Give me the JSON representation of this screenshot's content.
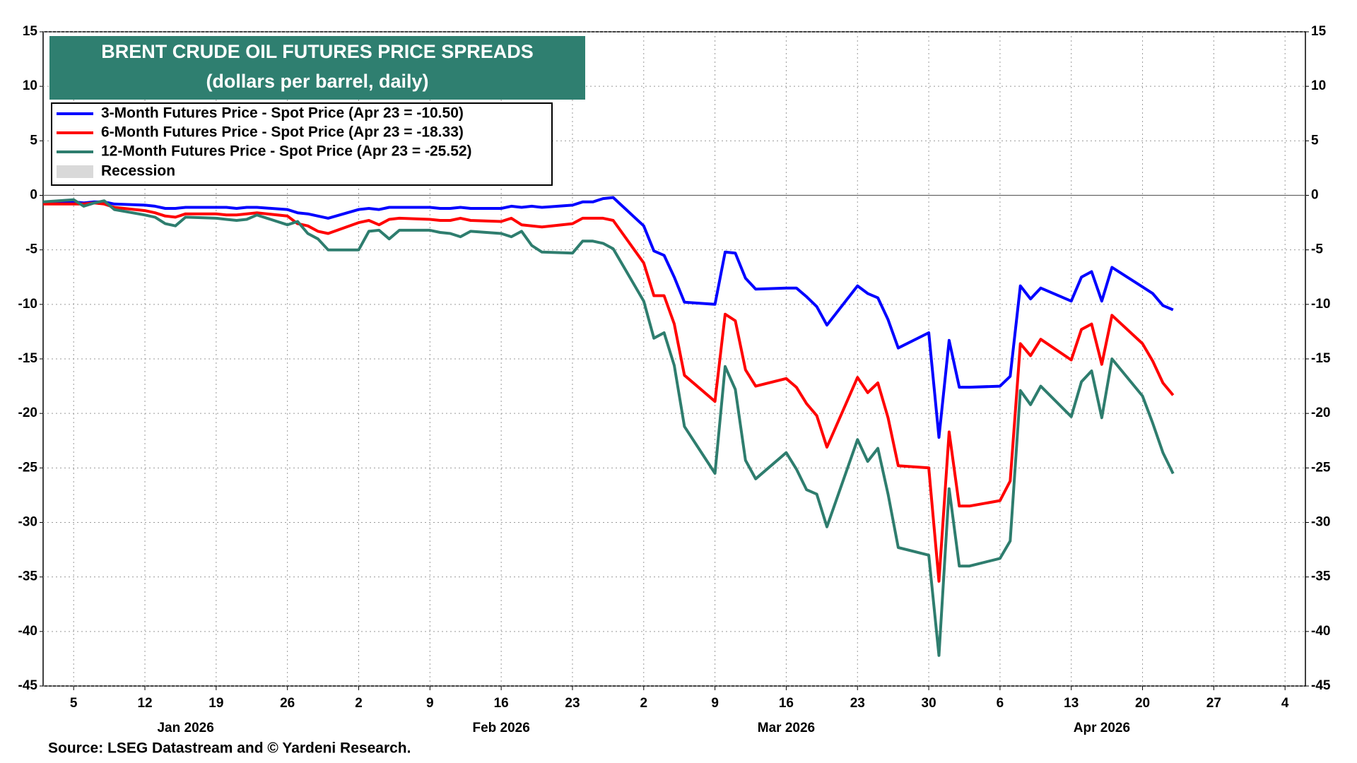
{
  "chart_data": {
    "type": "line",
    "title": "BRENT CRUDE OIL FUTURES PRICE SPREADS",
    "subtitle": "(dollars per barrel, daily)",
    "source": "Source: LSEG Datastream and © Yardeni Research.",
    "recession_label": "Recession",
    "x": [
      "2026-01-02",
      "2026-01-05",
      "2026-01-06",
      "2026-01-07",
      "2026-01-08",
      "2026-01-09",
      "2026-01-12",
      "2026-01-13",
      "2026-01-14",
      "2026-01-15",
      "2026-01-16",
      "2026-01-19",
      "2026-01-20",
      "2026-01-21",
      "2026-01-22",
      "2026-01-23",
      "2026-01-26",
      "2026-01-27",
      "2026-01-28",
      "2026-01-29",
      "2026-01-30",
      "2026-02-02",
      "2026-02-03",
      "2026-02-04",
      "2026-02-05",
      "2026-02-06",
      "2026-02-09",
      "2026-02-10",
      "2026-02-11",
      "2026-02-12",
      "2026-02-13",
      "2026-02-16",
      "2026-02-17",
      "2026-02-18",
      "2026-02-19",
      "2026-02-20",
      "2026-02-23",
      "2026-02-24",
      "2026-02-25",
      "2026-02-26",
      "2026-02-27",
      "2026-03-02",
      "2026-03-03",
      "2026-03-04",
      "2026-03-05",
      "2026-03-06",
      "2026-03-09",
      "2026-03-10",
      "2026-03-11",
      "2026-03-12",
      "2026-03-13",
      "2026-03-16",
      "2026-03-17",
      "2026-03-18",
      "2026-03-19",
      "2026-03-20",
      "2026-03-23",
      "2026-03-24",
      "2026-03-25",
      "2026-03-26",
      "2026-03-27",
      "2026-03-30",
      "2026-03-31",
      "2026-04-01",
      "2026-04-02",
      "2026-04-03",
      "2026-04-06",
      "2026-04-07",
      "2026-04-08",
      "2026-04-09",
      "2026-04-10",
      "2026-04-13",
      "2026-04-14",
      "2026-04-15",
      "2026-04-16",
      "2026-04-17",
      "2026-04-20",
      "2026-04-21",
      "2026-04-22",
      "2026-04-23"
    ],
    "series": [
      {
        "name": "3-Month Futures Price - Spot Price (Apr 23 = -10.50)",
        "color": "#0000ff",
        "values": [
          -0.7,
          -0.6,
          -0.7,
          -0.6,
          -0.6,
          -0.8,
          -0.9,
          -1.0,
          -1.2,
          -1.2,
          -1.1,
          -1.1,
          -1.1,
          -1.2,
          -1.1,
          -1.1,
          -1.3,
          -1.6,
          -1.7,
          -1.9,
          -2.1,
          -1.3,
          -1.2,
          -1.3,
          -1.1,
          -1.1,
          -1.1,
          -1.2,
          -1.2,
          -1.1,
          -1.2,
          -1.2,
          -1.0,
          -1.1,
          -1.0,
          -1.1,
          -0.9,
          -0.6,
          -0.6,
          -0.3,
          -0.2,
          -2.8,
          -5.1,
          -5.5,
          -7.5,
          -9.8,
          -10.0,
          -5.2,
          -5.3,
          -7.6,
          -8.6,
          -8.5,
          -8.5,
          -9.3,
          -10.2,
          -11.9,
          -8.3,
          -9.0,
          -9.4,
          -11.4,
          -14.0,
          -12.6,
          -22.2,
          -13.3,
          -17.6,
          -17.6,
          -17.5,
          -16.6,
          -8.3,
          -9.5,
          -8.5,
          -9.7,
          -7.5,
          -7.0,
          -9.7,
          -6.6,
          -8.4,
          -9.0,
          -10.1,
          -10.5
        ]
      },
      {
        "name": "6-Month Futures Price - Spot Price (Apr 23 = -18.33)",
        "color": "#ff0000",
        "values": [
          -0.8,
          -0.8,
          -0.8,
          -0.7,
          -0.8,
          -1.1,
          -1.4,
          -1.6,
          -1.9,
          -2.0,
          -1.7,
          -1.7,
          -1.8,
          -1.8,
          -1.7,
          -1.6,
          -1.9,
          -2.6,
          -2.8,
          -3.3,
          -3.5,
          -2.5,
          -2.3,
          -2.7,
          -2.2,
          -2.1,
          -2.2,
          -2.3,
          -2.3,
          -2.1,
          -2.3,
          -2.4,
          -2.1,
          -2.7,
          -2.8,
          -2.9,
          -2.6,
          -2.1,
          -2.1,
          -2.1,
          -2.3,
          -6.2,
          -9.2,
          -9.2,
          -11.8,
          -16.5,
          -18.9,
          -10.9,
          -11.5,
          -16.0,
          -17.5,
          -16.8,
          -17.6,
          -19.1,
          -20.2,
          -23.1,
          -16.7,
          -18.1,
          -17.2,
          -20.4,
          -24.8,
          -25.0,
          -35.4,
          -21.7,
          -28.5,
          -28.5,
          -28.0,
          -26.2,
          -13.6,
          -14.7,
          -13.2,
          -15.1,
          -12.3,
          -11.8,
          -15.5,
          -11.0,
          -13.6,
          -15.2,
          -17.2,
          -18.33
        ]
      },
      {
        "name": "12-Month Futures Price - Spot Price (Apr 23 = -25.52)",
        "color": "#2e7d6e",
        "values": [
          -0.6,
          -0.4,
          -1.0,
          -0.7,
          -0.5,
          -1.3,
          -1.8,
          -2.0,
          -2.6,
          -2.8,
          -2.0,
          -2.1,
          -2.2,
          -2.3,
          -2.2,
          -1.8,
          -2.7,
          -2.4,
          -3.5,
          -4.0,
          -5.0,
          -5.0,
          -3.3,
          -3.2,
          -4.0,
          -3.2,
          -3.2,
          -3.4,
          -3.5,
          -3.8,
          -3.3,
          -3.5,
          -3.8,
          -3.3,
          -4.6,
          -5.2,
          -5.3,
          -4.2,
          -4.2,
          -4.4,
          -4.9,
          -9.7,
          -13.1,
          -12.6,
          -15.6,
          -21.2,
          -25.5,
          -15.7,
          -17.8,
          -24.3,
          -26.0,
          -23.6,
          -25.1,
          -27.0,
          -27.4,
          -30.4,
          -22.4,
          -24.4,
          -23.2,
          -27.4,
          -32.3,
          -33.0,
          -42.2,
          -26.9,
          -34.0,
          -34.0,
          -33.3,
          -31.7,
          -17.9,
          -19.2,
          -17.5,
          -20.3,
          -17.1,
          -16.1,
          -20.4,
          -15.0,
          -18.4,
          -20.9,
          -23.6,
          -25.52
        ]
      }
    ],
    "xlim": [
      "2026-01-02",
      "2026-05-06"
    ],
    "xticks": [
      {
        "value": "2026-01-05",
        "label": "5"
      },
      {
        "value": "2026-01-12",
        "label": "12"
      },
      {
        "value": "2026-01-19",
        "label": "19"
      },
      {
        "value": "2026-01-26",
        "label": "26"
      },
      {
        "value": "2026-02-02",
        "label": "2"
      },
      {
        "value": "2026-02-09",
        "label": "9"
      },
      {
        "value": "2026-02-16",
        "label": "16"
      },
      {
        "value": "2026-02-23",
        "label": "23"
      },
      {
        "value": "2026-03-02",
        "label": "2"
      },
      {
        "value": "2026-03-09",
        "label": "9"
      },
      {
        "value": "2026-03-16",
        "label": "16"
      },
      {
        "value": "2026-03-23",
        "label": "23"
      },
      {
        "value": "2026-03-30",
        "label": "30"
      },
      {
        "value": "2026-04-06",
        "label": "6"
      },
      {
        "value": "2026-04-13",
        "label": "13"
      },
      {
        "value": "2026-04-20",
        "label": "20"
      },
      {
        "value": "2026-04-27",
        "label": "27"
      },
      {
        "value": "2026-05-04",
        "label": "4"
      }
    ],
    "months": [
      {
        "value": "2026-01",
        "label": "Jan 2026"
      },
      {
        "value": "2026-02",
        "label": "Feb 2026"
      },
      {
        "value": "2026-03",
        "label": "Mar 2026"
      },
      {
        "value": "2026-04",
        "label": "Apr 2026"
      }
    ],
    "ylim": [
      -45,
      15
    ],
    "yticks": [
      -45,
      -40,
      -35,
      -30,
      -25,
      -20,
      -15,
      -10,
      -5,
      0,
      5,
      10,
      15
    ],
    "grid": true
  }
}
